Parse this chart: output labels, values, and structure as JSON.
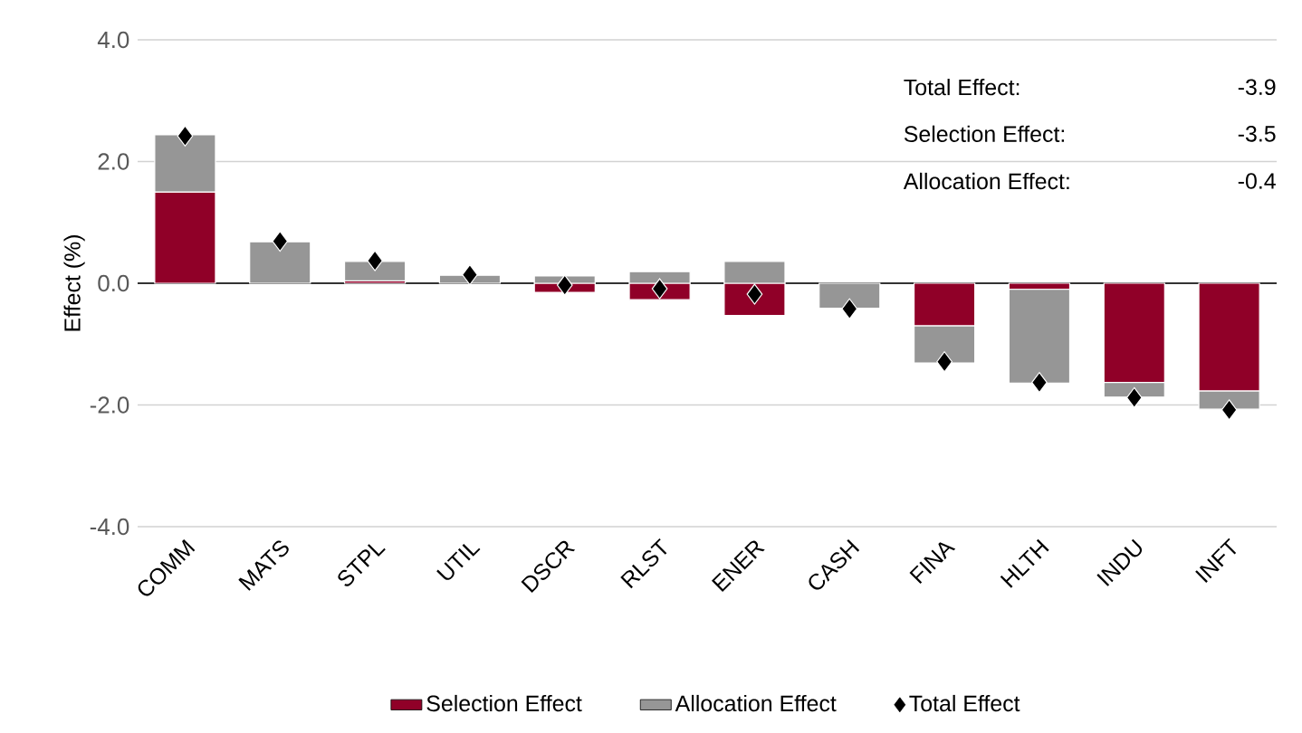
{
  "chart_data": {
    "type": "bar",
    "stacked": true,
    "ylabel": "Effect (%)",
    "categories": [
      "COMM",
      "MATS",
      "STPL",
      "UTIL",
      "DSCR",
      "RLST",
      "ENER",
      "CASH",
      "FINA",
      "HLTH",
      "INDU",
      "INFT"
    ],
    "series": [
      {
        "name": "Selection Effect",
        "color": "#900028",
        "values": [
          1.5,
          null,
          0.04,
          0.0,
          -0.15,
          -0.27,
          -0.53,
          0.0,
          -0.7,
          -0.1,
          -1.63,
          -1.77
        ]
      },
      {
        "name": "Allocation Effect",
        "color": "#969696",
        "values": [
          0.94,
          0.68,
          0.32,
          0.13,
          0.12,
          0.19,
          0.36,
          -0.41,
          -0.61,
          -1.54,
          -0.24,
          -0.3
        ]
      },
      {
        "name": "Total Effect",
        "type": "scatter",
        "color": "#000000",
        "values": [
          2.42,
          0.69,
          0.37,
          0.14,
          -0.03,
          -0.09,
          -0.18,
          -0.42,
          -1.29,
          -1.63,
          -1.88,
          -2.08
        ]
      }
    ],
    "ylim": [
      -4,
      4
    ],
    "yticks": [
      {
        "value": -4,
        "label": "-4.0"
      },
      {
        "value": -2,
        "label": "-2.0"
      },
      {
        "value": 0,
        "label": "0.0"
      },
      {
        "value": 2,
        "label": "2.0"
      },
      {
        "value": 4,
        "label": "4.0"
      }
    ],
    "grid": "y",
    "legend": "bottom",
    "marker": "diamond",
    "annotations": [
      "Total Effect:",
      "-3.9",
      "Selection Effect:",
      "-3.5",
      "Allocation Effect:",
      "-0.4"
    ]
  }
}
